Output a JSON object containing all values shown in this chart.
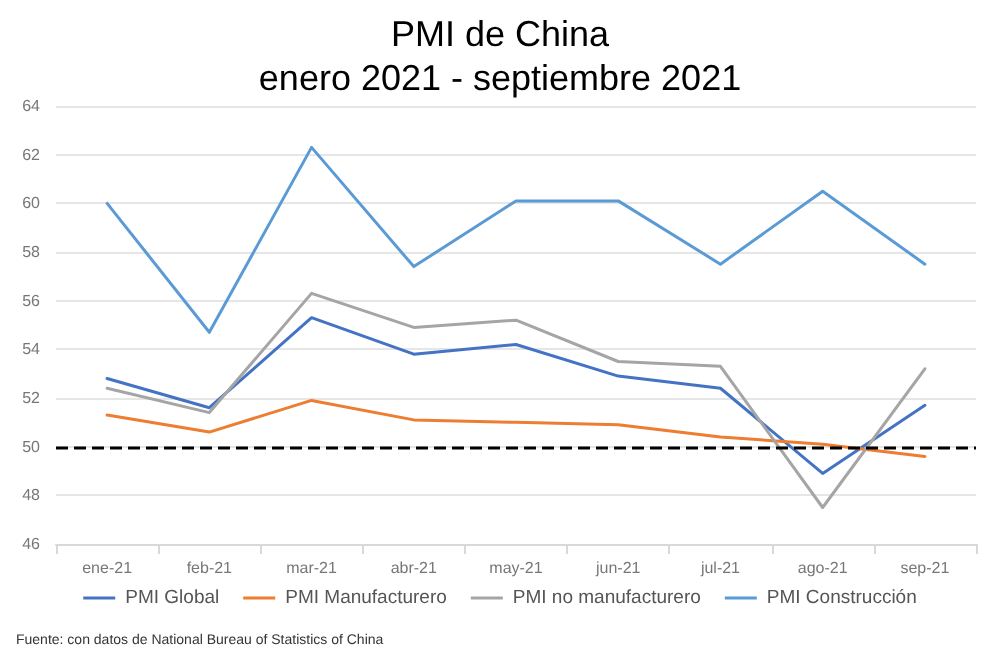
{
  "chart_data": {
    "type": "line",
    "title": "PMI de China",
    "subtitle": "enero 2021 - septiembre 2021",
    "categories": [
      "ene-21",
      "feb-21",
      "mar-21",
      "abr-21",
      "may-21",
      "jun-21",
      "jul-21",
      "ago-21",
      "sep-21"
    ],
    "series": [
      {
        "name": "PMI Global",
        "color": "#4472c4",
        "values": [
          52.8,
          51.6,
          55.3,
          53.8,
          54.2,
          52.9,
          52.4,
          48.9,
          51.7
        ]
      },
      {
        "name": "PMI Manufacturero",
        "color": "#ed7d31",
        "values": [
          51.3,
          50.6,
          51.9,
          51.1,
          51.0,
          50.9,
          50.4,
          50.1,
          49.6
        ]
      },
      {
        "name": "PMI no manufacturero",
        "color": "#a5a5a5",
        "values": [
          52.4,
          51.4,
          56.3,
          54.9,
          55.2,
          53.5,
          53.3,
          47.5,
          53.2
        ]
      },
      {
        "name": "PMI Construcción",
        "color": "#5b9bd5",
        "values": [
          60.0,
          54.7,
          62.3,
          57.4,
          60.1,
          60.1,
          57.5,
          60.5,
          57.5
        ]
      }
    ],
    "ylim": [
      46,
      64
    ],
    "yticks": [
      46,
      48,
      50,
      52,
      54,
      56,
      58,
      60,
      62,
      64
    ],
    "grid": "y",
    "legend": "bottom",
    "marker": "none",
    "line_style": "solid",
    "ref_lines": [
      {
        "axis": "y",
        "value": 50,
        "color": "#000000",
        "line_style": "dashed"
      }
    ],
    "annotations": [
      "Fuente: con datos de National Bureau of Statistics of China"
    ]
  }
}
